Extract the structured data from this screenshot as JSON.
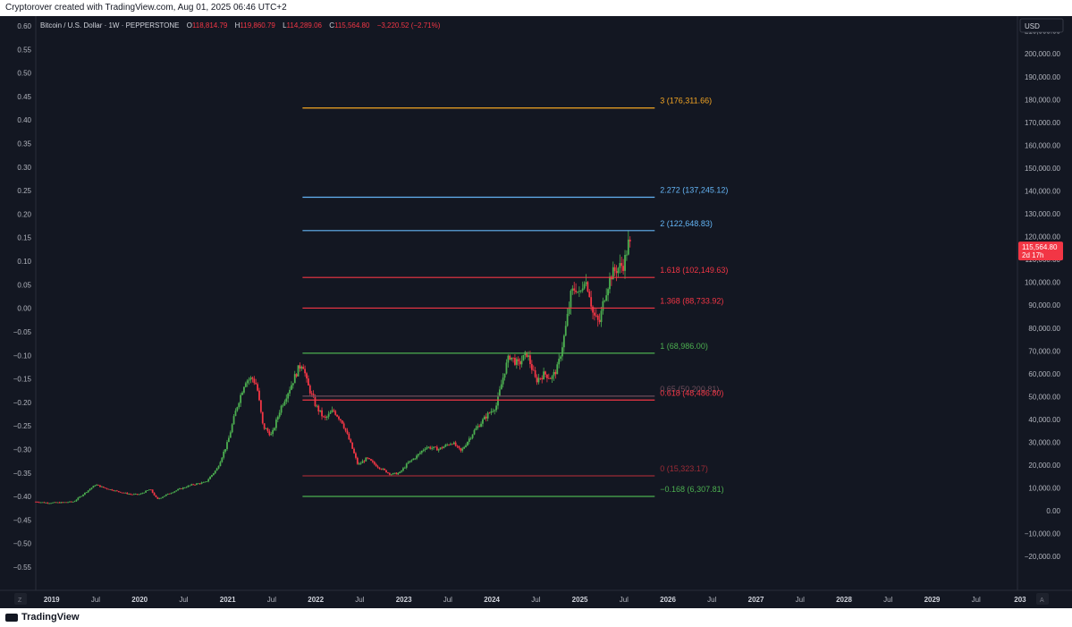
{
  "attribution": "Cryptorover created with TradingView.com, Aug 01, 2025 06:46 UTC+2",
  "brand": "TradingView",
  "symbol_title": "Bitcoin / U.S. Dollar · 1W · PEPPERSTONE",
  "ohlc": {
    "o_label": "O",
    "o": "118,814.79",
    "h_label": "H",
    "h": "119,860.79",
    "l_label": "L",
    "l": "114,289.06",
    "c_label": "C",
    "c": "115,564.80",
    "change": "−3,220.52 (−2.71%)"
  },
  "currency": "USD",
  "last_price_tag": {
    "price": "115,564.80",
    "countdown": "2d 17h"
  },
  "corner_left": "Z",
  "corner_right": "A",
  "chart_data": {
    "type": "candlestick",
    "interval": "1W",
    "right_axis": {
      "label": "USD",
      "ticks": [
        "210,000.00",
        "200,000.00",
        "190,000.00",
        "180,000.00",
        "170,000.00",
        "160,000.00",
        "150,000.00",
        "140,000.00",
        "130,000.00",
        "120,000.00",
        "110,000.00",
        "100,000.00",
        "90,000.00",
        "80,000.00",
        "70,000.00",
        "60,000.00",
        "50,000.00",
        "40,000.00",
        "30,000.00",
        "20,000.00",
        "10,000.00",
        "0.00",
        "−10,000.00",
        "−20,000.00"
      ],
      "ylim": [
        -25000,
        213000
      ]
    },
    "left_axis": {
      "ticks": [
        "0.60",
        "0.55",
        "0.50",
        "0.45",
        "0.40",
        "0.35",
        "0.30",
        "0.25",
        "0.20",
        "0.15",
        "0.10",
        "0.05",
        "0.00",
        "−0.05",
        "−0.10",
        "−0.15",
        "−0.20",
        "−0.25",
        "−0.30",
        "−0.35",
        "−0.40",
        "−0.45",
        "−0.50",
        "−0.55"
      ]
    },
    "x_axis": {
      "ticks": [
        {
          "label": "2019",
          "major": true,
          "t": 2019.0
        },
        {
          "label": "Jul",
          "major": false,
          "t": 2019.5
        },
        {
          "label": "2020",
          "major": true,
          "t": 2020.0
        },
        {
          "label": "Jul",
          "major": false,
          "t": 2020.5
        },
        {
          "label": "2021",
          "major": true,
          "t": 2021.0
        },
        {
          "label": "Jul",
          "major": false,
          "t": 2021.5
        },
        {
          "label": "2022",
          "major": true,
          "t": 2022.0
        },
        {
          "label": "Jul",
          "major": false,
          "t": 2022.5
        },
        {
          "label": "2023",
          "major": true,
          "t": 2023.0
        },
        {
          "label": "Jul",
          "major": false,
          "t": 2023.5
        },
        {
          "label": "2024",
          "major": true,
          "t": 2024.0
        },
        {
          "label": "Jul",
          "major": false,
          "t": 2024.5
        },
        {
          "label": "2025",
          "major": true,
          "t": 2025.0
        },
        {
          "label": "Jul",
          "major": false,
          "t": 2025.5
        },
        {
          "label": "2026",
          "major": true,
          "t": 2026.0
        },
        {
          "label": "Jul",
          "major": false,
          "t": 2026.5
        },
        {
          "label": "2027",
          "major": true,
          "t": 2027.0
        },
        {
          "label": "Jul",
          "major": false,
          "t": 2027.5
        },
        {
          "label": "2028",
          "major": true,
          "t": 2028.0
        },
        {
          "label": "Jul",
          "major": false,
          "t": 2028.5
        },
        {
          "label": "2029",
          "major": true,
          "t": 2029.0
        },
        {
          "label": "Jul",
          "major": false,
          "t": 2029.5
        },
        {
          "label": "203",
          "major": true,
          "t": 2030.0
        }
      ],
      "xlim": [
        2018.82,
        2029.97
      ]
    },
    "fib_levels": [
      {
        "label": "3 (176,311.66)",
        "price": 176311.66,
        "color": "#f5a623"
      },
      {
        "label": "2.272 (137,245.12)",
        "price": 137245.12,
        "color": "#64b5f6"
      },
      {
        "label": "2 (122,648.83)",
        "price": 122648.83,
        "color": "#64b5f6"
      },
      {
        "label": "1.618 (102,149.63)",
        "price": 102149.63,
        "color": "#f23645"
      },
      {
        "label": "1.368 (88,733.92)",
        "price": 88733.92,
        "color": "#f23645"
      },
      {
        "label": "1 (68,986.00)",
        "price": 68986.0,
        "color": "#4caf50"
      },
      {
        "label": "0.65 (50,200.81)",
        "price": 50200.81,
        "color": "#6d4c5a"
      },
      {
        "label": "0.618 (48,486.80)",
        "price": 48486.8,
        "color": "#f23645"
      },
      {
        "label": "0 (15,323.17)",
        "price": 15323.17,
        "color": "#9c2b36"
      },
      {
        "label": "−0.168 (6,307.81)",
        "price": 6307.81,
        "color": "#4caf50"
      }
    ],
    "fib_span": {
      "t_start": 2021.85,
      "t_end": 2025.85
    },
    "price_path": [
      [
        2018.82,
        4000
      ],
      [
        2018.95,
        3500
      ],
      [
        2019.1,
        3600
      ],
      [
        2019.25,
        4000
      ],
      [
        2019.4,
        8500
      ],
      [
        2019.5,
        11500
      ],
      [
        2019.6,
        10000
      ],
      [
        2019.75,
        8500
      ],
      [
        2019.9,
        7200
      ],
      [
        2020.0,
        7200
      ],
      [
        2020.12,
        9500
      ],
      [
        2020.2,
        5000
      ],
      [
        2020.3,
        7000
      ],
      [
        2020.45,
        9500
      ],
      [
        2020.6,
        11500
      ],
      [
        2020.75,
        12500
      ],
      [
        2020.88,
        18500
      ],
      [
        2021.0,
        30000
      ],
      [
        2021.1,
        45000
      ],
      [
        2021.2,
        57000
      ],
      [
        2021.28,
        58000
      ],
      [
        2021.33,
        55000
      ],
      [
        2021.4,
        37000
      ],
      [
        2021.5,
        33000
      ],
      [
        2021.6,
        45000
      ],
      [
        2021.72,
        55000
      ],
      [
        2021.8,
        62000
      ],
      [
        2021.85,
        65000
      ],
      [
        2021.9,
        56000
      ],
      [
        2022.0,
        46000
      ],
      [
        2022.1,
        40000
      ],
      [
        2022.2,
        44000
      ],
      [
        2022.3,
        39000
      ],
      [
        2022.4,
        29000
      ],
      [
        2022.48,
        20000
      ],
      [
        2022.58,
        23000
      ],
      [
        2022.7,
        19500
      ],
      [
        2022.85,
        16000
      ],
      [
        2022.95,
        16500
      ],
      [
        2023.05,
        21000
      ],
      [
        2023.15,
        24000
      ],
      [
        2023.25,
        28000
      ],
      [
        2023.4,
        27000
      ],
      [
        2023.55,
        30000
      ],
      [
        2023.65,
        26000
      ],
      [
        2023.8,
        35000
      ],
      [
        2023.95,
        42000
      ],
      [
        2024.05,
        46000
      ],
      [
        2024.15,
        62000
      ],
      [
        2024.2,
        68000
      ],
      [
        2024.3,
        64000
      ],
      [
        2024.4,
        69000
      ],
      [
        2024.5,
        57000
      ],
      [
        2024.6,
        60000
      ],
      [
        2024.68,
        58000
      ],
      [
        2024.75,
        63000
      ],
      [
        2024.83,
        78000
      ],
      [
        2024.9,
        95000
      ],
      [
        2024.95,
        98000
      ],
      [
        2025.0,
        94000
      ],
      [
        2025.05,
        102000
      ],
      [
        2025.1,
        97000
      ],
      [
        2025.15,
        86000
      ],
      [
        2025.22,
        82000
      ],
      [
        2025.28,
        94000
      ],
      [
        2025.35,
        103000
      ],
      [
        2025.42,
        106000
      ],
      [
        2025.5,
        108000
      ],
      [
        2025.55,
        117000
      ],
      [
        2025.58,
        115500
      ]
    ]
  }
}
